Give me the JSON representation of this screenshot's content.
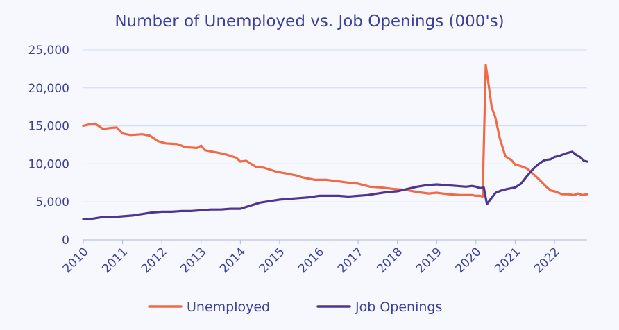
{
  "chart_data": {
    "type": "line",
    "title": "Number of Unemployed vs. Job Openings (000's)",
    "xlabel": "",
    "ylabel": "",
    "x_ticks": [
      "2010",
      "2011",
      "2012",
      "2013",
      "2014",
      "2015",
      "2016",
      "2017",
      "2018",
      "2019",
      "2020",
      "2021",
      "2022"
    ],
    "y_ticks": [
      "0",
      "5,000",
      "10,000",
      "15,000",
      "20,000",
      "25,000"
    ],
    "xlim": [
      2010.0,
      2022.83
    ],
    "ylim": [
      0,
      25000
    ],
    "grid": true,
    "legend_position": "bottom-center",
    "series": [
      {
        "name": "Unemployed",
        "color": "#f26a45",
        "x": [
          2010.0,
          2010.15,
          2010.3,
          2010.5,
          2010.65,
          2010.85,
          2011.0,
          2011.2,
          2011.5,
          2011.7,
          2011.9,
          2012.1,
          2012.4,
          2012.6,
          2012.9,
          2013.0,
          2013.1,
          2013.3,
          2013.6,
          2013.9,
          2014.0,
          2014.15,
          2014.4,
          2014.6,
          2014.9,
          2015.2,
          2015.4,
          2015.6,
          2015.9,
          2016.2,
          2016.5,
          2016.8,
          2017.0,
          2017.3,
          2017.6,
          2017.9,
          2018.2,
          2018.5,
          2018.8,
          2019.0,
          2019.3,
          2019.6,
          2019.9,
          2020.0,
          2020.1,
          2020.17,
          2020.25,
          2020.32,
          2020.4,
          2020.5,
          2020.6,
          2020.75,
          2020.9,
          2021.0,
          2021.15,
          2021.3,
          2021.45,
          2021.6,
          2021.75,
          2021.9,
          2022.0,
          2022.2,
          2022.35,
          2022.5,
          2022.6,
          2022.7,
          2022.83
        ],
        "values": [
          15000,
          15200,
          15300,
          14600,
          14700,
          14800,
          14000,
          13800,
          13900,
          13700,
          13000,
          12700,
          12600,
          12200,
          12100,
          12400,
          11800,
          11600,
          11300,
          10800,
          10300,
          10400,
          9600,
          9500,
          9000,
          8700,
          8500,
          8200,
          7900,
          7900,
          7700,
          7500,
          7400,
          7000,
          6900,
          6700,
          6600,
          6300,
          6100,
          6200,
          6000,
          5900,
          5900,
          5800,
          5800,
          5700,
          23000,
          20500,
          17500,
          16000,
          13500,
          11000,
          10500,
          9900,
          9700,
          9400,
          8700,
          8000,
          7200,
          6500,
          6400,
          6000,
          6000,
          5900,
          6100,
          5900,
          6000
        ]
      },
      {
        "name": "Job Openings",
        "color": "#4d3590",
        "x": [
          2010.0,
          2010.25,
          2010.5,
          2010.75,
          2011.0,
          2011.25,
          2011.5,
          2011.75,
          2012.0,
          2012.25,
          2012.5,
          2012.75,
          2013.0,
          2013.25,
          2013.5,
          2013.75,
          2014.0,
          2014.25,
          2014.5,
          2014.75,
          2015.0,
          2015.25,
          2015.5,
          2015.75,
          2016.0,
          2016.25,
          2016.5,
          2016.75,
          2017.0,
          2017.25,
          2017.5,
          2017.75,
          2018.0,
          2018.25,
          2018.5,
          2018.75,
          2019.0,
          2019.25,
          2019.5,
          2019.75,
          2019.9,
          2020.0,
          2020.1,
          2020.2,
          2020.28,
          2020.35,
          2020.5,
          2020.65,
          2020.8,
          2021.0,
          2021.15,
          2021.3,
          2021.45,
          2021.6,
          2021.75,
          2021.9,
          2022.0,
          2022.15,
          2022.3,
          2022.45,
          2022.55,
          2022.65,
          2022.75,
          2022.83
        ],
        "values": [
          2700,
          2800,
          3000,
          3000,
          3100,
          3200,
          3400,
          3600,
          3700,
          3700,
          3800,
          3800,
          3900,
          4000,
          4000,
          4100,
          4100,
          4500,
          4900,
          5100,
          5300,
          5400,
          5500,
          5600,
          5800,
          5800,
          5800,
          5700,
          5800,
          5900,
          6100,
          6300,
          6400,
          6700,
          7000,
          7200,
          7300,
          7200,
          7100,
          7000,
          7100,
          7000,
          6800,
          6900,
          4700,
          5200,
          6200,
          6500,
          6700,
          6900,
          7400,
          8400,
          9300,
          10000,
          10500,
          10600,
          10900,
          11100,
          11400,
          11600,
          11200,
          10900,
          10400,
          10300
        ]
      }
    ]
  }
}
